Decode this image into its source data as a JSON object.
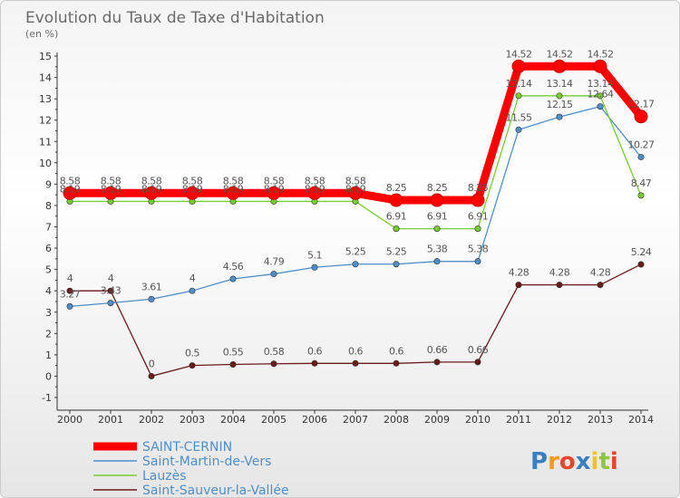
{
  "chart_data": {
    "type": "line",
    "title": "Evolution du Taux de Taxe d'Habitation",
    "ylabel": "(en %)",
    "x": [
      "2000",
      "2001",
      "2002",
      "2003",
      "2004",
      "2005",
      "2006",
      "2007",
      "2008",
      "2009",
      "2010",
      "2011",
      "2012",
      "2013",
      "2014"
    ],
    "ylim": [
      -1,
      15
    ],
    "yticks": [
      "-1",
      "0",
      "1",
      "2",
      "3",
      "4",
      "5",
      "6",
      "7",
      "8",
      "9",
      "10",
      "11",
      "12",
      "13",
      "14",
      "15"
    ],
    "grid": false,
    "legend_position": "bottom-left",
    "series": [
      {
        "name": "SAINT-CERNIN",
        "color": "#ff0000",
        "values": [
          8.58,
          8.58,
          8.58,
          8.58,
          8.58,
          8.58,
          8.58,
          8.58,
          8.25,
          8.25,
          8.25,
          14.52,
          14.52,
          14.52,
          12.17
        ],
        "labels": [
          "8.58",
          "8.58",
          "8.58",
          "8.58",
          "8.58",
          "8.58",
          "8.58",
          "8.58",
          "8.25",
          "8.25",
          "8.25",
          "14.52",
          "14.52",
          "14.52",
          "12.17"
        ]
      },
      {
        "name": "Saint-Martin-de-Vers",
        "color": "#4f8fc9",
        "values": [
          3.27,
          3.43,
          3.61,
          4,
          4.56,
          4.79,
          5.1,
          5.25,
          5.25,
          5.38,
          5.38,
          11.55,
          12.15,
          12.64,
          10.27
        ],
        "labels": [
          "3.27",
          "3.43",
          "3.61",
          "4",
          "4.56",
          "4.79",
          "5.1",
          "5.25",
          "5.25",
          "5.38",
          "5.38",
          "11.55",
          "12.15",
          "12.64",
          "10.27"
        ]
      },
      {
        "name": "Lauzès",
        "color": "#77cc33",
        "values": [
          8.19,
          8.19,
          8.19,
          8.19,
          8.19,
          8.19,
          8.19,
          8.19,
          6.91,
          6.91,
          6.91,
          13.14,
          13.14,
          13.14,
          8.47
        ],
        "labels": [
          "8.19",
          "8.19",
          "8.19",
          "8.19",
          "8.19",
          "8.19",
          "8.19",
          "8.19",
          "6.91",
          "6.91",
          "6.91",
          "13.14",
          "13.14",
          "13.14",
          "8.47"
        ]
      },
      {
        "name": "Saint-Sauveur-la-Vallée",
        "color": "#6b1a1a",
        "values": [
          4,
          4,
          0,
          0.5,
          0.55,
          0.58,
          0.6,
          0.6,
          0.6,
          0.66,
          0.66,
          4.28,
          4.28,
          4.28,
          5.24
        ],
        "labels": [
          "4",
          "4",
          "0",
          "0.5",
          "0.55",
          "0.58",
          "0.6",
          "0.6",
          "0.6",
          "0.66",
          "0.66",
          "4.28",
          "4.28",
          "4.28",
          "5.24"
        ]
      }
    ]
  },
  "brand": {
    "letters": [
      "P",
      "r",
      "o",
      "x",
      "i",
      "t",
      "i"
    ],
    "colors": [
      "#3a7fc4",
      "#f29a1a",
      "#e8452a",
      "#3a7fc4",
      "#f2c41a",
      "#8dc63f",
      "#e8452a"
    ]
  }
}
